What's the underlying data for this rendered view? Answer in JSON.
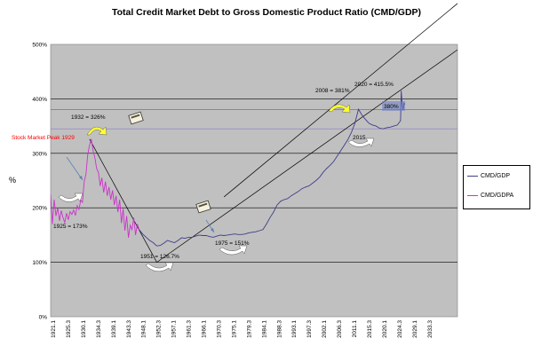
{
  "chart_data": {
    "type": "line",
    "title": "Total Credit Market Debt to Gross Domestic Product Ratio (CMD/GDP)",
    "xlabel": "",
    "ylabel": "%",
    "ylim": [
      0,
      500
    ],
    "yticks": [
      "0%",
      "100%",
      "200%",
      "300%",
      "400%",
      "500%"
    ],
    "xlim": [
      1921,
      2036
    ],
    "xticks": [
      "1921.1",
      "1925.3",
      "1930.1",
      "1934.3",
      "1939.1",
      "1943.3",
      "1948.1",
      "1952.3",
      "1957.1",
      "1961.3",
      "1966.1",
      "1970.3",
      "1975.1",
      "1979.3",
      "1984.1",
      "1988.3",
      "1993.1",
      "1997.3",
      "2002.1",
      "2006.3",
      "2011.1",
      "2015.3",
      "2020.1",
      "2024.3",
      "2029.1",
      "2033.3"
    ],
    "reference_lines": [
      380,
      345
    ],
    "trend_lines": [
      {
        "x": [
          1951,
          2036
        ],
        "y": [
          100,
          490
        ]
      },
      {
        "x": [
          1970,
          2036
        ],
        "y": [
          220,
          575
        ]
      }
    ],
    "series": [
      {
        "name": "CMD/GDP",
        "color": "#3d3d8c",
        "x": [
          1946,
          1947,
          1948,
          1949,
          1950,
          1951,
          1952,
          1953,
          1954,
          1955,
          1956,
          1957,
          1958,
          1959,
          1960,
          1961,
          1962,
          1963,
          1964,
          1965,
          1966,
          1967,
          1968,
          1969,
          1970,
          1971,
          1972,
          1973,
          1974,
          1975,
          1976,
          1977,
          1978,
          1979,
          1980,
          1981,
          1982,
          1983,
          1984,
          1985,
          1986,
          1987,
          1988,
          1989,
          1990,
          1991,
          1992,
          1993,
          1994,
          1995,
          1996,
          1997,
          1998,
          1999,
          2000,
          2001,
          2002,
          2003,
          2004,
          2005,
          2006,
          2007,
          2008,
          2009,
          2010,
          2011,
          2012,
          2013,
          2014,
          2015,
          2016,
          2017,
          2018,
          2019,
          2019.9,
          2020.1,
          2020.3,
          2020.6,
          2020.9,
          2021.2
        ],
        "values": [
          160,
          152,
          146,
          140,
          136,
          130,
          131,
          135,
          140,
          138,
          136,
          140,
          145,
          144,
          146,
          146,
          148,
          150,
          149,
          149,
          147,
          146,
          148,
          150,
          149,
          150,
          151,
          152,
          151,
          151,
          152,
          154,
          155,
          156,
          158,
          160,
          170,
          182,
          192,
          205,
          212,
          215,
          217,
          222,
          226,
          230,
          235,
          238,
          240,
          245,
          250,
          256,
          265,
          272,
          278,
          285,
          295,
          305,
          315,
          325,
          338,
          355,
          381,
          370,
          362,
          355,
          352,
          350,
          346,
          345,
          347,
          348,
          350,
          352,
          360,
          415,
          395,
          380,
          392,
          390
        ]
      },
      {
        "name": "CMD/GDPA",
        "color": "#cc33cc",
        "x": [
          1921,
          1921.5,
          1922,
          1922.5,
          1923,
          1923.5,
          1924,
          1924.5,
          1925,
          1925.5,
          1926,
          1926.5,
          1927,
          1927.5,
          1928,
          1928.5,
          1929,
          1929.5,
          1930,
          1930.5,
          1931,
          1931.5,
          1932,
          1932.5,
          1933,
          1933.5,
          1934,
          1934.5,
          1935,
          1935.5,
          1936,
          1936.5,
          1937,
          1937.5,
          1938,
          1938.5,
          1939,
          1939.5,
          1940,
          1940.5,
          1941,
          1941.5,
          1942,
          1942.5,
          1943,
          1943.5,
          1944,
          1944.5,
          1945,
          1945.5,
          1946
        ],
        "values": [
          225,
          170,
          215,
          185,
          200,
          176,
          195,
          182,
          173,
          190,
          178,
          193,
          188,
          196,
          186,
          204,
          197,
          214,
          210,
          248,
          262,
          298,
          315,
          326,
          305,
          292,
          272,
          265,
          240,
          255,
          228,
          248,
          222,
          238,
          215,
          232,
          205,
          222,
          192,
          215,
          172,
          198,
          158,
          185,
          145,
          168,
          160,
          182,
          150,
          170,
          160
        ]
      }
    ],
    "legend": {
      "placement": "right",
      "entries": [
        "CMD/GDP",
        "CMD/GDPA"
      ]
    },
    "annotations": [
      {
        "text": "Stock Market Peak 1929",
        "color": "#ff0000"
      },
      {
        "text": "1932 = 326%"
      },
      {
        "text": "1925 = 173%"
      },
      {
        "text": "1951 = 126.7%"
      },
      {
        "text": "1975 = 151%"
      },
      {
        "text": "2008 = 381%"
      },
      {
        "text": "2020 = 415.5%"
      },
      {
        "text": "2015"
      },
      {
        "text": "380%"
      }
    ]
  }
}
